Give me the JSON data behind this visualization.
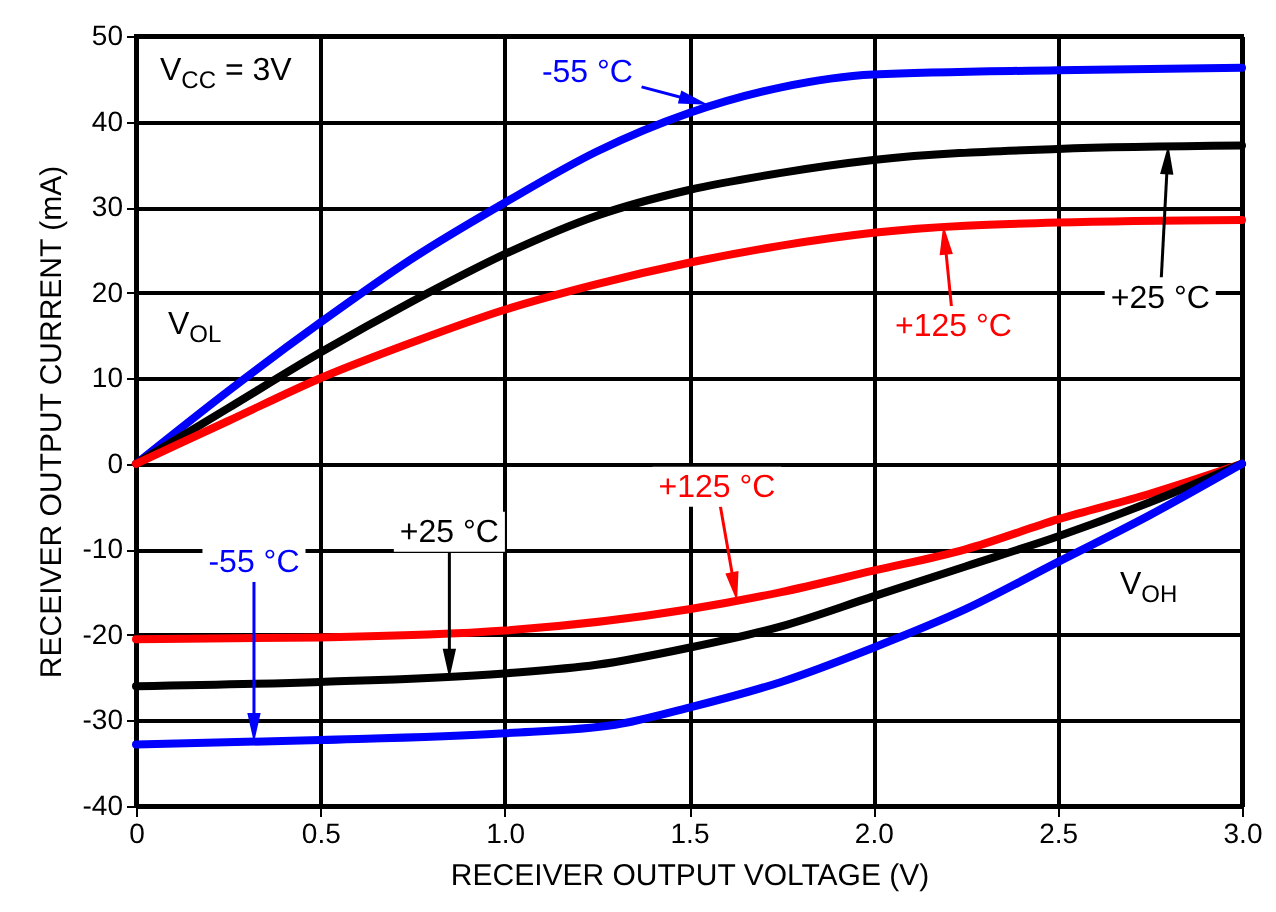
{
  "chart_data": {
    "type": "line",
    "xlabel": "RECEIVER OUTPUT VOLTAGE (V)",
    "ylabel": "RECEIVER OUTPUT CURRENT (mA)",
    "xlim": [
      0,
      3
    ],
    "xticks": [
      0,
      0.5,
      {
        "value": 1,
        "label": "1.0"
      },
      1.5,
      {
        "value": 2,
        "label": "2.0"
      },
      2.5,
      {
        "value": 3,
        "label": "3.0"
      }
    ],
    "ylim": [
      -40,
      50
    ],
    "yticks": [
      -40,
      -30,
      -20,
      -10,
      0,
      10,
      20,
      30,
      40,
      50
    ],
    "grid": true,
    "line_style": "solid",
    "marker": "none",
    "series": [
      {
        "color": "#0000ff",
        "x": [
          0,
          0.25,
          0.5,
          0.75,
          1,
          1.25,
          1.5,
          1.75,
          2,
          2.5,
          3
        ],
        "values": [
          0,
          8.5,
          16.5,
          24,
          30.5,
          36.5,
          41,
          44,
          45.5,
          46,
          46.3
        ]
      },
      {
        "color": "#000000",
        "x": [
          0,
          0.25,
          0.5,
          0.75,
          1,
          1.25,
          1.5,
          1.75,
          2,
          2.5,
          3
        ],
        "values": [
          0,
          6.5,
          13,
          19,
          24.5,
          29,
          32,
          34,
          35.5,
          36.8,
          37.2
        ]
      },
      {
        "color": "#ff0000",
        "x": [
          0,
          0.25,
          0.5,
          0.75,
          1,
          1.25,
          1.5,
          1.75,
          2,
          2.5,
          3
        ],
        "values": [
          0,
          5,
          10,
          14.2,
          18,
          21,
          23.5,
          25.5,
          27,
          28.2,
          28.5
        ]
      },
      {
        "color": "#ff0000",
        "x": [
          0,
          0.5,
          1,
          1.5,
          1.75,
          2,
          2.25,
          2.5,
          2.75,
          3
        ],
        "values": [
          -20.5,
          -20.3,
          -19.5,
          -17,
          -15,
          -12.5,
          -10,
          -6.5,
          -3.5,
          0
        ]
      },
      {
        "color": "#000000",
        "x": [
          0,
          0.5,
          1,
          1.25,
          1.5,
          1.75,
          2,
          2.25,
          2.5,
          2.75,
          3
        ],
        "values": [
          -26,
          -25.5,
          -24.5,
          -23.5,
          -21.5,
          -19,
          -15.5,
          -12,
          -8.5,
          -4.5,
          0
        ]
      },
      {
        "color": "#0000ff",
        "x": [
          0,
          0.5,
          1,
          1.3,
          1.5,
          1.75,
          2,
          2.25,
          2.5,
          2.75,
          3
        ],
        "values": [
          -32.8,
          -32.3,
          -31.5,
          -30.5,
          -28.5,
          -25.5,
          -21.5,
          -17,
          -11.5,
          -6,
          0
        ]
      }
    ],
    "annotations": [
      "V$_{CC}$ = 3V",
      "V$_{OL}$",
      "V$_{OH}$",
      {
        "text": "-55 °C",
        "x": 1.55,
        "y": 42
      },
      {
        "text": "+25 °C",
        "x": 2.8,
        "y": 37.2
      },
      {
        "text": "+125 °C",
        "x": 2.19,
        "y": 27.8
      },
      {
        "text": "-55 °C",
        "x": 0.32,
        "y": -32.5
      },
      {
        "text": "+25 °C",
        "x": 0.85,
        "y": -25
      },
      {
        "text": "+125 °C",
        "x": 1.63,
        "y": -16
      }
    ]
  }
}
